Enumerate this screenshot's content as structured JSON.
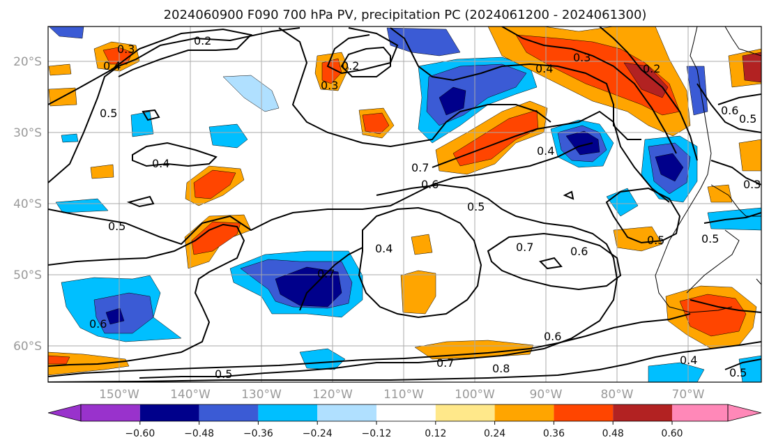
{
  "title": "2024060900 F090 700 hPa PV, precipitation PC (2024061200 - 2024061300)",
  "map": {
    "lat_labels": [
      "20°S",
      "30°S",
      "40°S",
      "50°S",
      "60°S"
    ],
    "lon_labels": [
      "150°W",
      "140°W",
      "130°W",
      "120°W",
      "110°W",
      "100°W",
      "90°W",
      "80°W",
      "70°W"
    ],
    "grid": true
  },
  "contour_labels": [
    "0.3",
    "0.2",
    "0.4",
    "0.5",
    "0.4",
    "0.2",
    "0.3",
    "0.4",
    "0.3",
    "0.2",
    "0.6",
    "0.5",
    "0.7",
    "0.6",
    "0.4",
    "0.5",
    "0.3",
    "0.5",
    "0.4",
    "0.7",
    "0.7",
    "0.6",
    "0.5",
    "0.6",
    "0.7",
    "0.8",
    "0.5",
    "0.4",
    "0.5",
    "0.6",
    "0.5"
  ],
  "colorbar": {
    "tick_labels": [
      "−0.60",
      "−0.48",
      "−0.36",
      "−0.24",
      "−0.12",
      "0.12",
      "0.24",
      "0.36",
      "0.48",
      "0.60"
    ],
    "colors": [
      "#9932cc",
      "#00008b",
      "#3b5bd5",
      "#00bfff",
      "#b0e0ff",
      "#ffffff",
      "#ffe88a",
      "#ffa500",
      "#ff4500",
      "#b22222",
      "#ff88b8"
    ],
    "extend": "both"
  }
}
